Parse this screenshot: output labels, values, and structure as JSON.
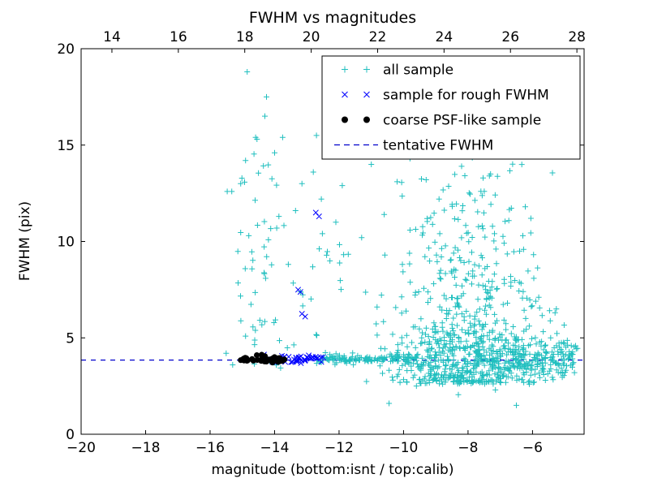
{
  "chart_data": {
    "type": "scatter",
    "title": "FWHM vs magnitudes",
    "xlabel": "magnitude (bottom:isnt / top:calib)",
    "ylabel": "FWHM (pix)",
    "xlim": [
      -20,
      -4.4
    ],
    "ylim": [
      0,
      20
    ],
    "grid": false,
    "legend_position": "upper right",
    "tentative_fwhm": 3.85,
    "colors": {
      "all_sample": "#20bfbf",
      "rough_sample": "#0000ff",
      "psf_sample": "#000000",
      "line": "#0000cc"
    },
    "bottom_ticks": [
      {
        "label": "−20",
        "isnt": -20
      },
      {
        "label": "−18",
        "isnt": -18
      },
      {
        "label": "−16",
        "isnt": -16
      },
      {
        "label": "−14",
        "isnt": -14
      },
      {
        "label": "−12",
        "isnt": -12
      },
      {
        "label": "−10",
        "isnt": -10
      },
      {
        "label": "−8",
        "isnt": -8
      },
      {
        "label": "−6",
        "isnt": -6
      }
    ],
    "top_ticks": [
      {
        "label": "14",
        "isnt": -19.045
      },
      {
        "label": "16",
        "isnt": -16.985
      },
      {
        "label": "18",
        "isnt": -14.925
      },
      {
        "label": "20",
        "isnt": -12.864
      },
      {
        "label": "22",
        "isnt": -10.804
      },
      {
        "label": "24",
        "isnt": -8.744
      },
      {
        "label": "26",
        "isnt": -6.684
      },
      {
        "label": "28",
        "isnt": -4.623
      }
    ],
    "y_ticks": [
      {
        "label": "0",
        "v": 0
      },
      {
        "label": "5",
        "v": 5
      },
      {
        "label": "10",
        "v": 10
      },
      {
        "label": "15",
        "v": 15
      },
      {
        "label": "20",
        "v": 20
      }
    ],
    "legend": [
      {
        "label": "all sample",
        "marker": "plus",
        "color": "#20bfbf"
      },
      {
        "label": "sample for rough FWHM",
        "marker": "x",
        "color": "#0000ff"
      },
      {
        "label": "coarse PSF-like sample",
        "marker": "dot",
        "color": "#000000"
      },
      {
        "label": "tentative FWHM",
        "marker": "dashes",
        "color": "#0000cc"
      }
    ],
    "series": [
      {
        "name": "all sample",
        "marker": "plus",
        "color": "#20bfbf",
        "seed": 42,
        "points": [
          [
            -14.85,
            18.8
          ],
          [
            -14.25,
            17.5
          ],
          [
            -14.3,
            16.5
          ],
          [
            -13.75,
            15.4
          ],
          [
            -14.9,
            14.2
          ],
          [
            -15.05,
            13.0
          ],
          [
            -14.0,
            14.6
          ],
          [
            -13.15,
            13.0
          ],
          [
            -12.7,
            15.5
          ],
          [
            -12.35,
            14.4
          ],
          [
            -12.8,
            13.6
          ],
          [
            -11.9,
            12.9
          ],
          [
            -12.1,
            11.0
          ],
          [
            -13.35,
            11.6
          ],
          [
            -12.55,
            12.2
          ],
          [
            -11.0,
            14.0
          ],
          [
            -11.3,
            10.2
          ],
          [
            -10.6,
            11.4
          ],
          [
            -10.2,
            13.1
          ],
          [
            -9.8,
            14.3
          ],
          [
            -9.3,
            13.2
          ],
          [
            -8.7,
            14.8
          ],
          [
            -8.2,
            13.9
          ],
          [
            -7.6,
            12.6
          ],
          [
            -8.9,
            12.2
          ],
          [
            -7.3,
            13.5
          ],
          [
            -6.4,
            9.5
          ],
          [
            -6.05,
            11.2
          ],
          [
            -6.3,
            10.3
          ],
          [
            -5.9,
            6.9
          ],
          [
            -5.3,
            6.3
          ],
          [
            -10.45,
            1.6
          ],
          [
            -9.6,
            2.5
          ],
          [
            -8.3,
            2.05
          ],
          [
            -7.15,
            2.3
          ],
          [
            -6.5,
            1.5
          ],
          [
            -5.6,
            2.8
          ],
          [
            -5.2,
            3.2
          ],
          [
            -15.5,
            4.2
          ],
          [
            -15.3,
            3.6
          ]
        ],
        "clusters": [
          {
            "n": 55,
            "x": {
              "dist": "normal",
              "mean": -14.5,
              "sd": 0.45,
              "clip": [
                -15.5,
                -13.4
              ]
            },
            "y": {
              "dist": "pow",
              "a": 3.4,
              "b": 15.5,
              "exp": 1.4
            }
          },
          {
            "n": 20,
            "x": {
              "dist": "uniform",
              "a": -13.5,
              "b": -11.7
            },
            "y": {
              "dist": "uniform",
              "a": 4.2,
              "b": 10.5
            }
          },
          {
            "n": 650,
            "x": {
              "dist": "normal",
              "mean": -8.2,
              "sd": 1.15,
              "clip": [
                -11.3,
                -5.0
              ]
            },
            "y": {
              "dist": "exp",
              "off": 2.6,
              "scale": 2.3,
              "clip": [
                2.2,
                16.5
              ]
            }
          },
          {
            "n": 60,
            "x": {
              "dist": "normal",
              "mean": -8.1,
              "sd": 0.95,
              "clip": [
                -10.5,
                -6.2
              ]
            },
            "y": {
              "dist": "uniform",
              "a": 8,
              "b": 13.5
            }
          },
          {
            "n": 130,
            "x": {
              "dist": "uniform",
              "a": -12.7,
              "b": -9.6
            },
            "y": {
              "dist": "normal",
              "mean": 3.9,
              "sd": 0.13,
              "clip": [
                3.4,
                4.4
              ]
            }
          },
          {
            "n": 200,
            "x": {
              "dist": "uniform",
              "a": -7.8,
              "b": -4.6
            },
            "y": {
              "dist": "normal",
              "mean": 4.05,
              "sd": 0.5,
              "clip": [
                2.6,
                6.5
              ]
            }
          },
          {
            "n": 40,
            "x": {
              "dist": "uniform",
              "a": -6.8,
              "b": -4.8
            },
            "y": {
              "dist": "exp",
              "off": 3.2,
              "scale": 1.2,
              "clip": [
                3.2,
                9.6
              ]
            }
          }
        ]
      },
      {
        "name": "sample for rough FWHM",
        "marker": "x",
        "color": "#0000ff",
        "seed": 7,
        "points": [
          [
            -12.72,
            11.5
          ],
          [
            -12.62,
            11.3
          ],
          [
            -13.27,
            7.5
          ],
          [
            -13.2,
            7.38
          ],
          [
            -13.15,
            6.25
          ],
          [
            -13.05,
            6.1
          ],
          [
            -12.55,
            3.75
          ],
          [
            -12.5,
            4.0
          ]
        ],
        "clusters": [
          {
            "n": 45,
            "x": {
              "dist": "uniform",
              "a": -14.35,
              "b": -12.5
            },
            "y": {
              "dist": "normal",
              "mean": 3.9,
              "sd": 0.1,
              "clip": [
                3.6,
                4.25
              ]
            }
          }
        ]
      },
      {
        "name": "coarse PSF-like sample",
        "marker": "dot",
        "color": "#000000",
        "seed": 3,
        "points": [
          [
            -14.55,
            4.1
          ],
          [
            -14.4,
            4.12
          ],
          [
            -14.3,
            4.05
          ]
        ],
        "clusters": [
          {
            "n": 42,
            "x": {
              "dist": "uniform",
              "a": -15.05,
              "b": -13.68
            },
            "y": {
              "dist": "normal",
              "mean": 3.87,
              "sd": 0.06,
              "clip": [
                3.72,
                4.05
              ]
            }
          }
        ]
      }
    ]
  }
}
